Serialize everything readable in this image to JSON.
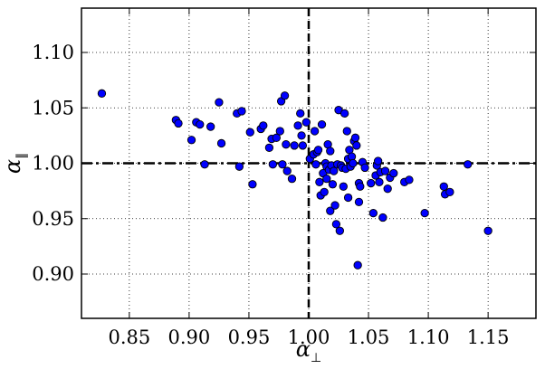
{
  "chart_data": {
    "type": "scatter",
    "xlabel": "α⊥",
    "ylabel": "α∥",
    "xlabel_base": "α",
    "xlabel_sub": "⊥",
    "ylabel_base": "α",
    "ylabel_sub": "∥",
    "xlim": [
      0.81,
      1.19
    ],
    "ylim": [
      0.86,
      1.14
    ],
    "xticks": [
      0.85,
      0.9,
      0.95,
      1.0,
      1.05,
      1.1,
      1.15
    ],
    "xtick_labels": [
      "0.85",
      "0.90",
      "0.95",
      "1.00",
      "1.05",
      "1.10",
      "1.15"
    ],
    "yticks": [
      0.9,
      0.95,
      1.0,
      1.05,
      1.1
    ],
    "ytick_labels": [
      "0.90",
      "0.95",
      "1.00",
      "1.05",
      "1.10"
    ],
    "grid": true,
    "reference_lines": {
      "x": 1.0,
      "y": 1.0
    },
    "marker_color": "#0000ff",
    "points": [
      [
        0.827,
        1.063
      ],
      [
        0.889,
        1.039
      ],
      [
        0.891,
        1.036
      ],
      [
        0.902,
        1.021
      ],
      [
        0.906,
        1.037
      ],
      [
        0.909,
        1.035
      ],
      [
        0.913,
        0.999
      ],
      [
        0.918,
        1.033
      ],
      [
        0.925,
        1.055
      ],
      [
        0.927,
        1.018
      ],
      [
        0.94,
        1.045
      ],
      [
        0.942,
        0.997
      ],
      [
        0.944,
        1.047
      ],
      [
        0.951,
        1.028
      ],
      [
        0.953,
        0.981
      ],
      [
        0.96,
        1.031
      ],
      [
        0.962,
        1.034
      ],
      [
        0.967,
        1.014
      ],
      [
        0.969,
        1.022
      ],
      [
        0.97,
        0.999
      ],
      [
        0.973,
        1.023
      ],
      [
        0.976,
        1.029
      ],
      [
        0.977,
        1.056
      ],
      [
        0.978,
        0.999
      ],
      [
        0.98,
        1.061
      ],
      [
        0.981,
        1.017
      ],
      [
        0.982,
        0.993
      ],
      [
        0.986,
        0.986
      ],
      [
        0.988,
        1.016
      ],
      [
        0.991,
        1.034
      ],
      [
        0.993,
        1.045
      ],
      [
        0.994,
        1.025
      ],
      [
        0.995,
        1.016
      ],
      [
        0.998,
        1.037
      ],
      [
        1.001,
        1.004
      ],
      [
        1.004,
        1.008
      ],
      [
        1.005,
        1.029
      ],
      [
        1.006,
        0.999
      ],
      [
        1.007,
        1.01
      ],
      [
        1.008,
        1.012
      ],
      [
        1.009,
        0.983
      ],
      [
        1.01,
        0.971
      ],
      [
        1.011,
        1.035
      ],
      [
        1.012,
        0.991
      ],
      [
        1.013,
        0.974
      ],
      [
        1.014,
        1.0
      ],
      [
        1.015,
        0.986
      ],
      [
        1.015,
        0.997
      ],
      [
        1.016,
        1.017
      ],
      [
        1.017,
        0.994
      ],
      [
        1.018,
        0.957
      ],
      [
        1.018,
        1.011
      ],
      [
        1.019,
        0.998
      ],
      [
        1.02,
        0.981
      ],
      [
        1.021,
        0.993
      ],
      [
        1.022,
        0.962
      ],
      [
        1.023,
        0.945
      ],
      [
        1.024,
        0.999
      ],
      [
        1.025,
        1.048
      ],
      [
        1.026,
        0.939
      ],
      [
        1.027,
        0.998
      ],
      [
        1.028,
        0.996
      ],
      [
        1.029,
        0.979
      ],
      [
        1.03,
        1.045
      ],
      [
        1.031,
        0.995
      ],
      [
        1.032,
        1.029
      ],
      [
        1.033,
        1.004
      ],
      [
        1.033,
        0.969
      ],
      [
        1.034,
        1.012
      ],
      [
        1.035,
        0.997
      ],
      [
        1.036,
        1.006
      ],
      [
        1.037,
        1.0
      ],
      [
        1.038,
        1.02
      ],
      [
        1.039,
        1.023
      ],
      [
        1.04,
        1.016
      ],
      [
        1.041,
        0.908
      ],
      [
        1.042,
        0.982
      ],
      [
        1.042,
        0.965
      ],
      [
        1.043,
        0.979
      ],
      [
        1.045,
        1.001
      ],
      [
        1.047,
        0.996
      ],
      [
        1.052,
        0.982
      ],
      [
        1.054,
        0.955
      ],
      [
        1.056,
        0.989
      ],
      [
        1.057,
        0.998
      ],
      [
        1.058,
        1.002
      ],
      [
        1.059,
        0.983
      ],
      [
        1.06,
        0.992
      ],
      [
        1.062,
        0.951
      ],
      [
        1.064,
        0.993
      ],
      [
        1.066,
        0.977
      ],
      [
        1.068,
        0.987
      ],
      [
        1.071,
        0.991
      ],
      [
        1.08,
        0.983
      ],
      [
        1.084,
        0.985
      ],
      [
        1.097,
        0.955
      ],
      [
        1.113,
        0.979
      ],
      [
        1.114,
        0.972
      ],
      [
        1.118,
        0.974
      ],
      [
        1.133,
        0.999
      ],
      [
        1.15,
        0.939
      ]
    ]
  }
}
